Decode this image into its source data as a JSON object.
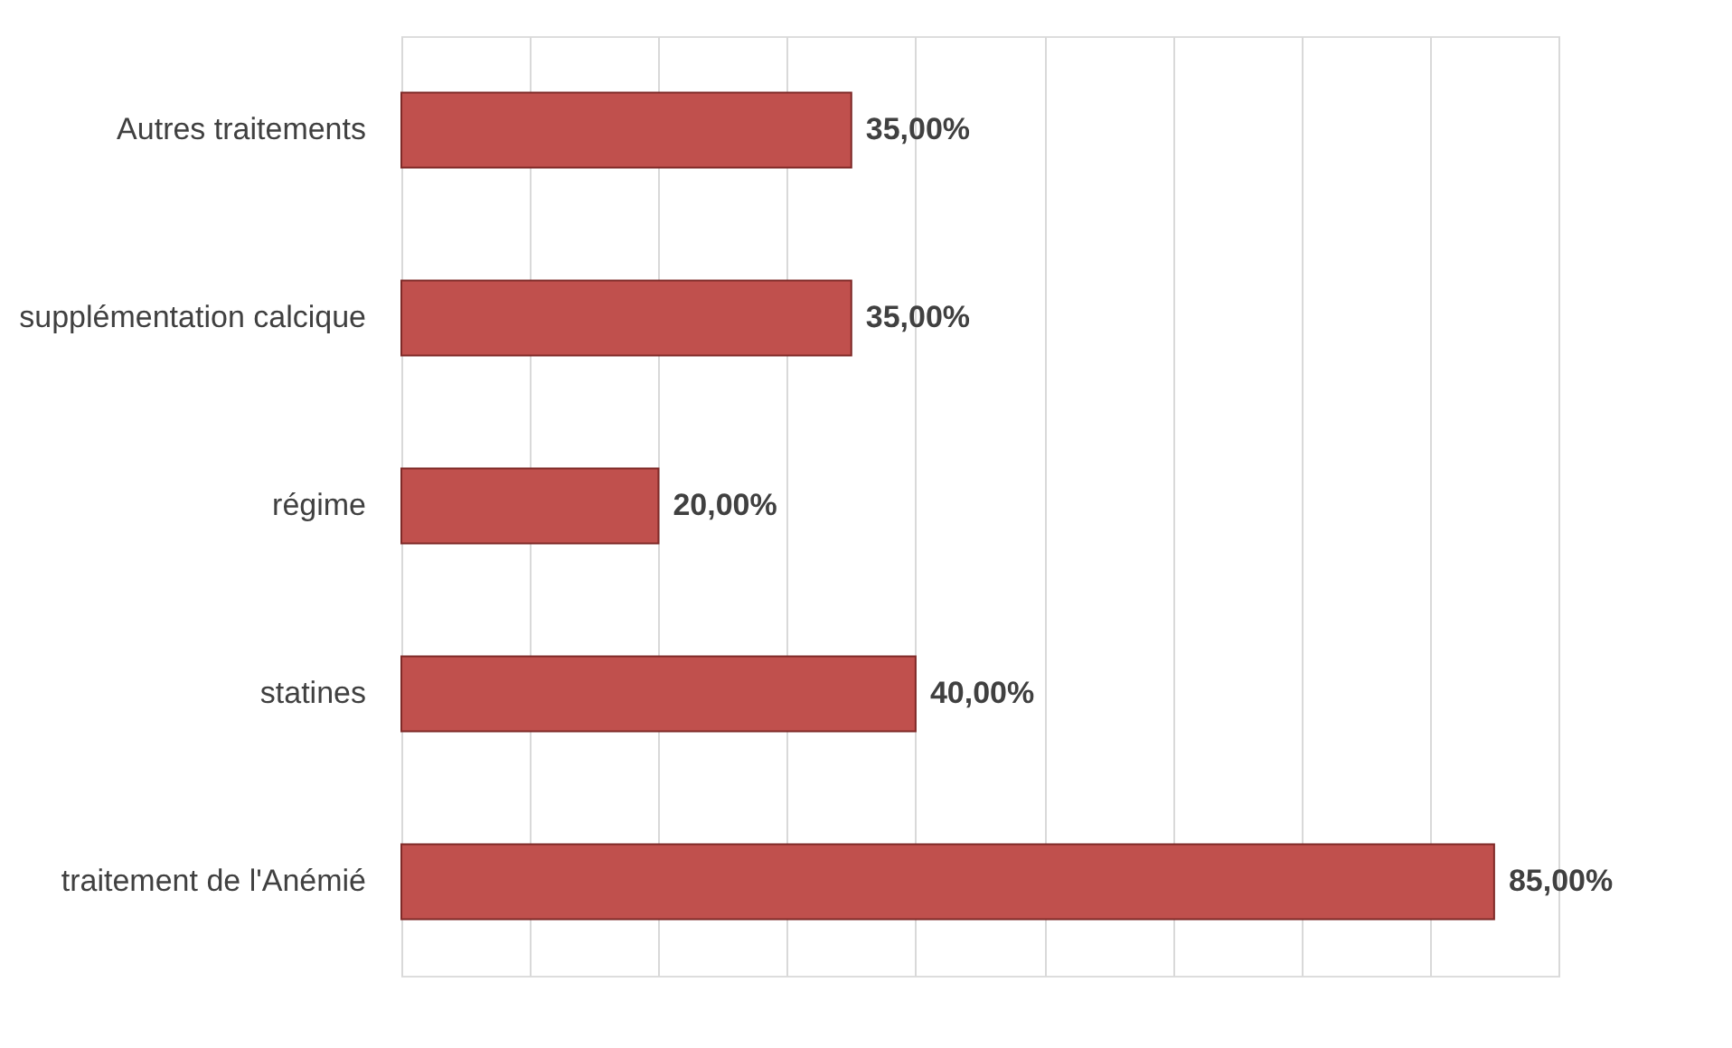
{
  "chart_data": {
    "type": "bar",
    "orientation": "horizontal",
    "categories": [
      "Autres traitements",
      "supplémentation calcique",
      "régime",
      "statines",
      "traitement de l'Anémié"
    ],
    "values": [
      35,
      35,
      20,
      40,
      85
    ],
    "value_labels": [
      "35,00%",
      "35,00%",
      "20,00%",
      "40,00%",
      "85,00%"
    ],
    "color": "#c0504d",
    "xlim": [
      0,
      90
    ],
    "xticks": [
      {
        "value": 0,
        "label": null
      },
      {
        "value": 10,
        "label": null
      },
      {
        "value": 20,
        "label": null
      },
      {
        "value": 30,
        "label": null
      },
      {
        "value": 40,
        "label": null
      },
      {
        "value": 50,
        "label": null
      },
      {
        "value": 60,
        "label": null
      },
      {
        "value": 70,
        "label": null
      },
      {
        "value": 80,
        "label": null
      },
      {
        "value": 90,
        "label": null
      }
    ],
    "grid": "x",
    "tick_labels": "y"
  }
}
